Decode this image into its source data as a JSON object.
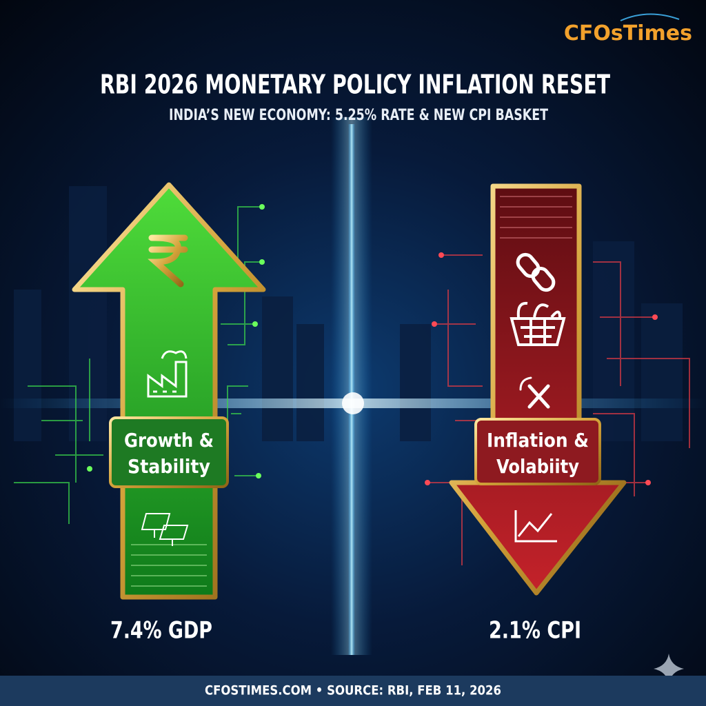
{
  "header": {
    "logo": "CFOsTimes",
    "title": "RBI 2026 MONETARY POLICY INFLATION RESET",
    "subtitle": "INDIA’S NEW ECONOMY: 5.25% RATE & NEW CPI BASKET"
  },
  "left": {
    "label_lines": [
      "Growth &",
      "Stability"
    ],
    "stat": "7.4% GDP"
  },
  "right": {
    "label_lines": [
      "Inflation &",
      "Volabiity"
    ],
    "stat": "2.1% CPI"
  },
  "footer": {
    "text": "CFOSTIMES.COM • SOURCE: RBI, FEB 11, 2026"
  }
}
